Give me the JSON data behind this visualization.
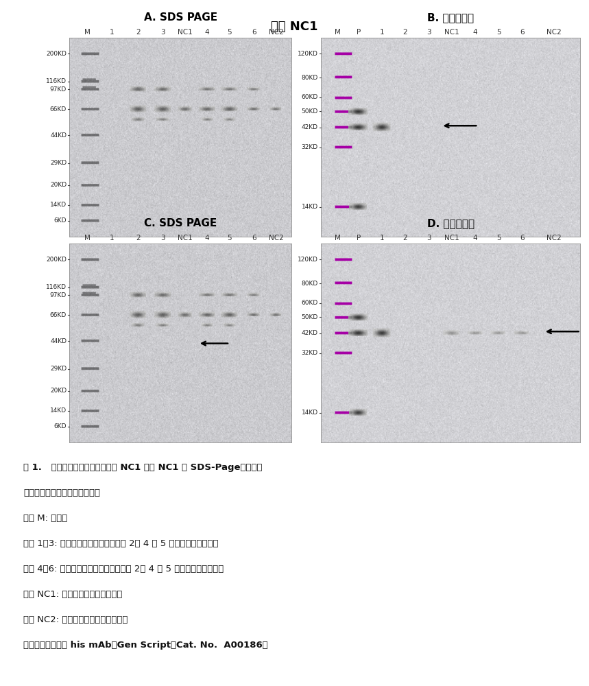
{
  "title": "小鼠 NC1",
  "panel_A_title": "A. SDS PAGE",
  "panel_B_title": "B. 蛋白质印迹",
  "panel_C_title": "C. SDS PAGE",
  "panel_D_title": "D. 蛋白质印迹",
  "sds_lane_labels": [
    "M",
    "1",
    "2",
    "3",
    "NC1",
    "4",
    "5",
    "6",
    "NC2"
  ],
  "wb_lane_labels": [
    "M",
    "P",
    "1",
    "2",
    "3",
    "NC1",
    "4",
    "5",
    "6",
    "NC2"
  ],
  "sds_mw_labels": [
    "200KD",
    "116KD",
    "97KD",
    "66KD",
    "44KD",
    "29KD",
    "20KD",
    "14KD",
    "6KD"
  ],
  "wb_mw_labels": [
    "120KD",
    "80KD",
    "60KD",
    "50KD",
    "42KD",
    "32KD",
    "14KD"
  ],
  "caption_lines": [
    "图 1.   来自细胞培养上清液的小鼠 NC1 和人 NC1 的 SDS-Page（左图）",
    "和蛋白质免疫印迹（右图）分析",
    "泳道 M: 标志物",
    "泳道 1～3: 在还原条件下来自转染后第 2、 4 和 5 天的细胞培养上清液",
    "泳道 4～6: 在非还原条件下来自转染后第 2、 4 和 5 天的细胞培养上清液",
    "泳道 NC1: 在还原条件下的阴性对照",
    "泳道 NC2: 在非还原条件下的阴性对照",
    "一级抗体：小鼠抗 his mAb（Gen Script，Cat. No.  A00186）"
  ],
  "caption_bold": [
    true,
    false,
    false,
    false,
    false,
    false,
    false,
    true
  ],
  "gel_bg_sds": "#ccccd4",
  "gel_bg_wb": "#ccccd0",
  "bg_color": "#ffffff"
}
